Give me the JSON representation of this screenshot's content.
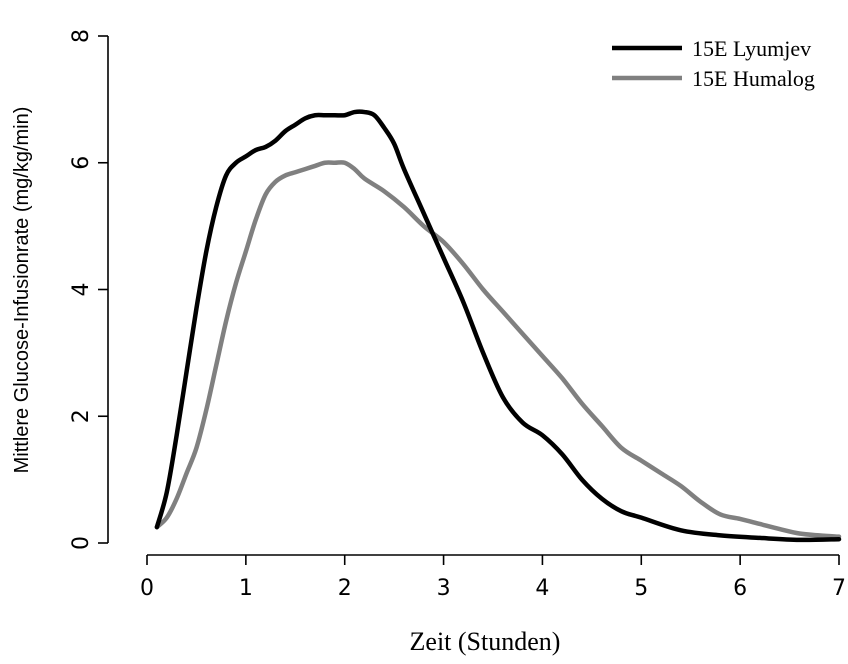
{
  "chart_data": {
    "type": "line",
    "xlabel": "Zeit (Stunden)",
    "ylabel": "Mittlere Glucose-Infusionrate (mg/kg/min)",
    "xlim": [
      0,
      7
    ],
    "ylim": [
      0,
      8
    ],
    "xticks": [
      0,
      1,
      2,
      3,
      4,
      5,
      6,
      7
    ],
    "yticks": [
      0,
      2,
      4,
      6,
      8
    ],
    "grid": false,
    "legend_position": "top-right",
    "series": [
      {
        "name": "15E Lyumjev",
        "color": "#000000",
        "x": [
          0.1,
          0.2,
          0.3,
          0.4,
          0.5,
          0.6,
          0.7,
          0.8,
          0.9,
          1.0,
          1.1,
          1.2,
          1.3,
          1.4,
          1.5,
          1.6,
          1.7,
          1.8,
          1.9,
          2.0,
          2.1,
          2.2,
          2.3,
          2.4,
          2.5,
          2.6,
          2.8,
          3.0,
          3.2,
          3.4,
          3.6,
          3.8,
          4.0,
          4.2,
          4.4,
          4.6,
          4.8,
          5.0,
          5.4,
          5.8,
          6.2,
          6.6,
          7.0
        ],
        "y": [
          0.25,
          0.8,
          1.7,
          2.7,
          3.7,
          4.6,
          5.3,
          5.8,
          6.0,
          6.1,
          6.2,
          6.25,
          6.35,
          6.5,
          6.6,
          6.7,
          6.75,
          6.75,
          6.75,
          6.75,
          6.8,
          6.8,
          6.75,
          6.55,
          6.3,
          5.9,
          5.2,
          4.5,
          3.8,
          3.0,
          2.3,
          1.9,
          1.7,
          1.4,
          1.0,
          0.7,
          0.5,
          0.4,
          0.2,
          0.12,
          0.08,
          0.05,
          0.06
        ]
      },
      {
        "name": "15E Humalog",
        "color": "#808080",
        "x": [
          0.1,
          0.2,
          0.3,
          0.4,
          0.5,
          0.6,
          0.7,
          0.8,
          0.9,
          1.0,
          1.1,
          1.2,
          1.3,
          1.4,
          1.5,
          1.6,
          1.7,
          1.8,
          1.9,
          2.0,
          2.1,
          2.2,
          2.4,
          2.6,
          2.8,
          3.0,
          3.2,
          3.4,
          3.6,
          3.8,
          4.0,
          4.2,
          4.4,
          4.6,
          4.8,
          5.0,
          5.2,
          5.4,
          5.6,
          5.8,
          6.0,
          6.2,
          6.4,
          6.6,
          6.8,
          7.0
        ],
        "y": [
          0.25,
          0.4,
          0.7,
          1.1,
          1.5,
          2.1,
          2.8,
          3.5,
          4.1,
          4.6,
          5.1,
          5.5,
          5.7,
          5.8,
          5.85,
          5.9,
          5.95,
          6.0,
          6.0,
          6.0,
          5.9,
          5.75,
          5.55,
          5.3,
          5.0,
          4.75,
          4.4,
          4.0,
          3.65,
          3.3,
          2.95,
          2.6,
          2.2,
          1.85,
          1.5,
          1.3,
          1.1,
          0.9,
          0.65,
          0.45,
          0.38,
          0.3,
          0.22,
          0.15,
          0.12,
          0.1
        ]
      }
    ]
  }
}
